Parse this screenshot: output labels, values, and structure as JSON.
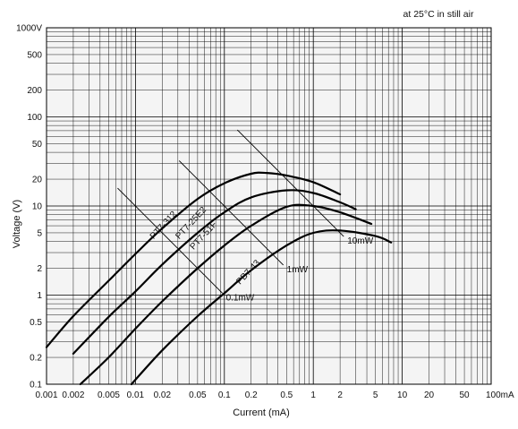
{
  "chart_data": {
    "type": "line",
    "title": "",
    "condition_note": "at 25°C in still air",
    "xlabel": "Current (mA)",
    "ylabel": "Voltage (V)",
    "xscale": "log",
    "yscale": "log",
    "xlim": [
      0.001,
      100
    ],
    "ylim": [
      0.1,
      1000
    ],
    "grid": true,
    "x_ticks": [
      {
        "v": 0.001,
        "label": "0.001"
      },
      {
        "v": 0.002,
        "label": "0.002"
      },
      {
        "v": 0.005,
        "label": "0.005"
      },
      {
        "v": 0.01,
        "label": "0.01"
      },
      {
        "v": 0.02,
        "label": "0.02"
      },
      {
        "v": 0.05,
        "label": "0.05"
      },
      {
        "v": 0.1,
        "label": "0.1"
      },
      {
        "v": 0.2,
        "label": "0.2"
      },
      {
        "v": 0.5,
        "label": "0.5"
      },
      {
        "v": 1,
        "label": "1"
      },
      {
        "v": 2,
        "label": "2"
      },
      {
        "v": 5,
        "label": "5"
      },
      {
        "v": 10,
        "label": "10"
      },
      {
        "v": 20,
        "label": "20"
      },
      {
        "v": 50,
        "label": "50"
      },
      {
        "v": 100,
        "label": "100mA"
      }
    ],
    "y_ticks": [
      {
        "v": 0.1,
        "label": "0.1"
      },
      {
        "v": 0.2,
        "label": "0.2"
      },
      {
        "v": 0.5,
        "label": "0.5"
      },
      {
        "v": 1,
        "label": "1"
      },
      {
        "v": 2,
        "label": "2"
      },
      {
        "v": 5,
        "label": "5"
      },
      {
        "v": 10,
        "label": "10"
      },
      {
        "v": 20,
        "label": "20"
      },
      {
        "v": 50,
        "label": "50"
      },
      {
        "v": 100,
        "label": "100"
      },
      {
        "v": 200,
        "label": "200"
      },
      {
        "v": 500,
        "label": "500"
      },
      {
        "v": 1000,
        "label": "1000V"
      }
    ],
    "series": [
      {
        "name": "PT7-312",
        "points": [
          [
            0.001,
            0.26
          ],
          [
            0.002,
            0.58
          ],
          [
            0.005,
            1.45
          ],
          [
            0.01,
            2.9
          ],
          [
            0.02,
            5.6
          ],
          [
            0.05,
            12
          ],
          [
            0.1,
            18
          ],
          [
            0.2,
            23
          ],
          [
            0.3,
            23.5
          ],
          [
            0.5,
            22
          ],
          [
            1,
            18.5
          ],
          [
            2,
            13.5
          ]
        ]
      },
      {
        "name": "PT7-25E2",
        "points": [
          [
            0.002,
            0.22
          ],
          [
            0.005,
            0.57
          ],
          [
            0.01,
            1.1
          ],
          [
            0.02,
            2.2
          ],
          [
            0.05,
            5
          ],
          [
            0.1,
            8.5
          ],
          [
            0.2,
            12.5
          ],
          [
            0.5,
            15
          ],
          [
            1,
            14
          ],
          [
            2,
            11
          ],
          [
            3,
            9.2
          ]
        ]
      },
      {
        "name": "PT7-51F",
        "points": [
          [
            0.0024,
            0.1
          ],
          [
            0.005,
            0.2
          ],
          [
            0.01,
            0.42
          ],
          [
            0.02,
            0.85
          ],
          [
            0.05,
            2
          ],
          [
            0.1,
            3.6
          ],
          [
            0.2,
            6
          ],
          [
            0.5,
            9.8
          ],
          [
            1,
            10
          ],
          [
            2,
            8.5
          ],
          [
            4.5,
            6.3
          ]
        ]
      },
      {
        "name": "PB7-43",
        "points": [
          [
            0.009,
            0.1
          ],
          [
            0.02,
            0.24
          ],
          [
            0.05,
            0.58
          ],
          [
            0.1,
            1.05
          ],
          [
            0.2,
            1.9
          ],
          [
            0.5,
            3.6
          ],
          [
            1,
            5
          ],
          [
            2,
            5.3
          ],
          [
            5,
            4.6
          ],
          [
            7.5,
            3.9
          ]
        ]
      }
    ],
    "power_lines": [
      {
        "label": "0.1mW",
        "power_mW": 0.1
      },
      {
        "label": "1mW",
        "power_mW": 1
      },
      {
        "label": "10mW",
        "power_mW": 10
      }
    ]
  }
}
